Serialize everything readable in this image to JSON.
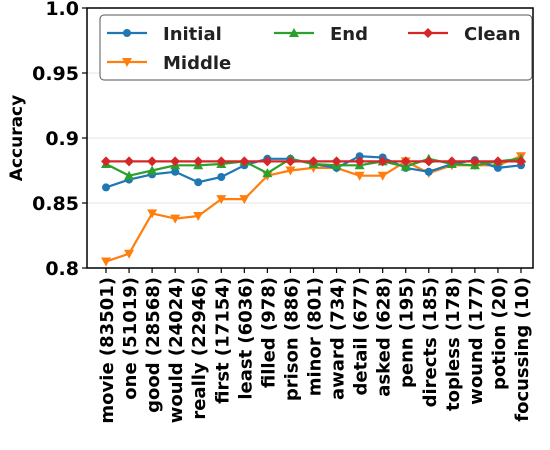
{
  "chart_data": {
    "type": "line",
    "title": "",
    "xlabel": "",
    "ylabel": "Accuracy",
    "ylim": [
      0.8,
      1.0
    ],
    "yticks": [
      0.8,
      0.85,
      0.9,
      0.95,
      1.0
    ],
    "ytick_labels": [
      "0.8",
      "0.85",
      "0.9",
      "0.95",
      "1.0"
    ],
    "grid": "horizontal",
    "legend_position": "top",
    "categories": [
      "movie (83501)",
      "one (51019)",
      "good (28568)",
      "would (24024)",
      "really (22946)",
      "first (17154)",
      "least (6036)",
      "filled (978)",
      "prison (886)",
      "minor (801)",
      "award (734)",
      "detail (677)",
      "asked (628)",
      "penn (195)",
      "directs (185)",
      "topless (178)",
      "wound (177)",
      "potion (20)",
      "focussing (10)"
    ],
    "series": [
      {
        "name": "Initial",
        "color": "#1f77b4",
        "marker": "circle",
        "values": [
          0.862,
          0.868,
          0.872,
          0.874,
          0.866,
          0.87,
          0.879,
          0.884,
          0.884,
          0.88,
          0.877,
          0.886,
          0.885,
          0.877,
          0.874,
          0.88,
          0.883,
          0.877,
          0.879
        ]
      },
      {
        "name": "Middle",
        "color": "#ff7f0e",
        "marker": "triangle-down",
        "values": [
          0.805,
          0.811,
          0.842,
          0.838,
          0.84,
          0.853,
          0.853,
          0.871,
          0.875,
          0.877,
          0.877,
          0.871,
          0.871,
          0.882,
          0.873,
          0.879,
          0.879,
          0.879,
          0.886
        ]
      },
      {
        "name": "End",
        "color": "#2ca02c",
        "marker": "triangle-up",
        "values": [
          0.88,
          0.871,
          0.875,
          0.879,
          0.879,
          0.88,
          0.882,
          0.873,
          0.884,
          0.88,
          0.879,
          0.879,
          0.882,
          0.878,
          0.884,
          0.88,
          0.879,
          0.882,
          0.884
        ]
      },
      {
        "name": "Clean",
        "color": "#d62728",
        "marker": "diamond",
        "values": [
          0.882,
          0.882,
          0.882,
          0.882,
          0.882,
          0.882,
          0.882,
          0.882,
          0.882,
          0.882,
          0.882,
          0.882,
          0.882,
          0.882,
          0.882,
          0.882,
          0.882,
          0.882,
          0.882
        ]
      }
    ]
  }
}
